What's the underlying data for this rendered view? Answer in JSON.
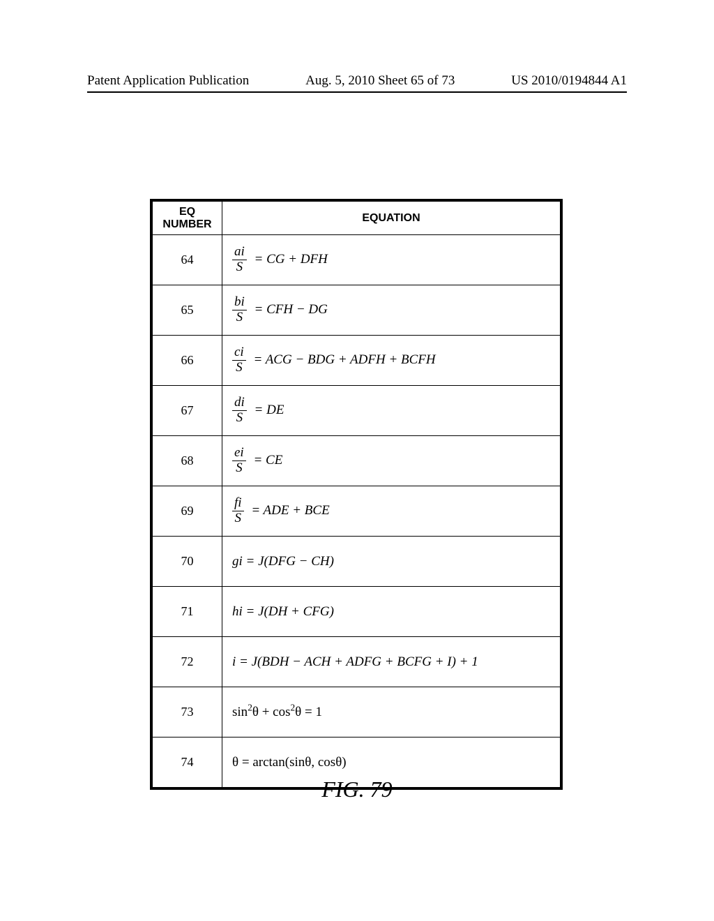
{
  "header": {
    "left": "Patent Application Publication",
    "center": "Aug. 5, 2010  Sheet 65 of 73",
    "right": "US 2010/0194844 A1"
  },
  "table": {
    "headers": {
      "col1_line1": "EQ",
      "col1_line2": "NUMBER",
      "col2": "EQUATION"
    },
    "rows": [
      {
        "num": "64",
        "frac_num": "ai",
        "frac_den": "S",
        "rhs": " =  CG + DFH"
      },
      {
        "num": "65",
        "frac_num": "bi",
        "frac_den": "S",
        "rhs": " =  CFH − DG"
      },
      {
        "num": "66",
        "frac_num": "ci",
        "frac_den": "S",
        "rhs": " =  ACG − BDG + ADFH + BCFH"
      },
      {
        "num": "67",
        "frac_num": "di",
        "frac_den": "S",
        "rhs": " =  DE"
      },
      {
        "num": "68",
        "frac_num": "ei",
        "frac_den": "S",
        "rhs": " =  CE"
      },
      {
        "num": "69",
        "frac_num": "fi",
        "frac_den": "S",
        "rhs": " =  ADE + BCE"
      },
      {
        "num": "70",
        "plain": "gi  =  J(DFG − CH)"
      },
      {
        "num": "71",
        "plain": "hi  =  J(DH + CFG)"
      },
      {
        "num": "72",
        "plain": "i  =  J(BDH − ACH + ADFG + BCFG + I) + 1"
      },
      {
        "num": "73",
        "trig73": true
      },
      {
        "num": "74",
        "trig74": true
      }
    ]
  },
  "figure_label": "FIG. 79",
  "trig": {
    "sin": "sin",
    "cos": "cos",
    "arctan": "arctan",
    "theta": "θ",
    "eq73_rhs": " = 1",
    "eq74_mid": " = ",
    "plus": " + ",
    "comma": ", ",
    "lparen": "(",
    "rparen": ")",
    "sup2": "2"
  }
}
